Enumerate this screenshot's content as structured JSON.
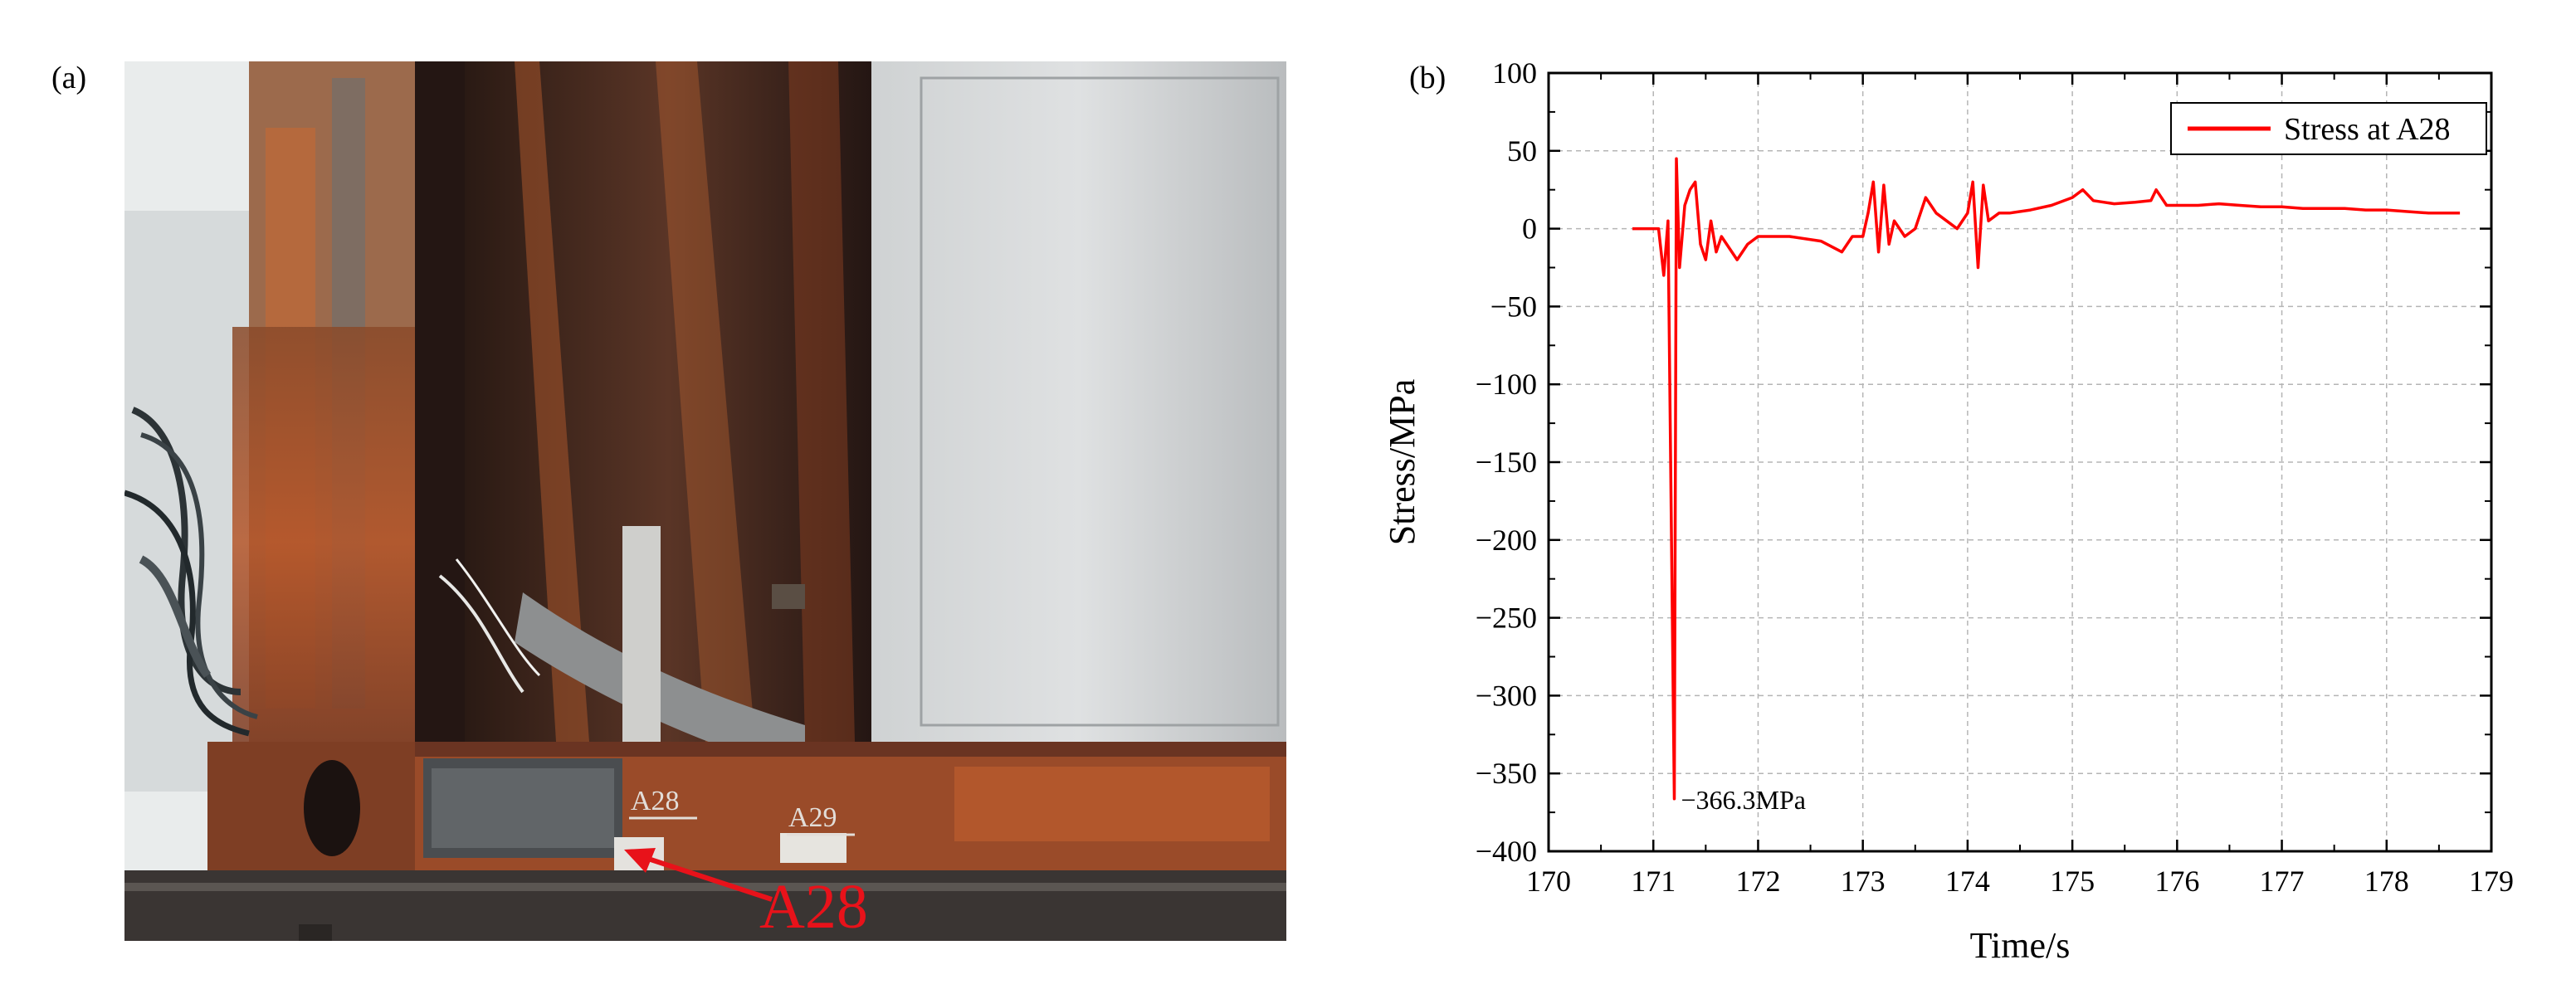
{
  "panels": {
    "a_label": "(a)",
    "b_label": "(b)"
  },
  "photo": {
    "marker_labels": [
      "A28",
      "A29"
    ],
    "callout_label": "A28",
    "callout_color": "#e8121a"
  },
  "chart_data": {
    "type": "line",
    "xlabel": "Time/s",
    "ylabel": "Stress/MPa",
    "xlim": [
      170,
      179
    ],
    "ylim": [
      -400,
      100
    ],
    "xticks": [
      170,
      171,
      172,
      173,
      174,
      175,
      176,
      177,
      178,
      179
    ],
    "yticks": [
      100,
      50,
      0,
      -50,
      -100,
      -150,
      -200,
      -250,
      -300,
      -350,
      -400
    ],
    "grid": true,
    "legend_position": "top-right",
    "line_color": "#ff0000",
    "series": [
      {
        "name": "Stress at A28",
        "x": [
          170.8,
          171.0,
          171.05,
          171.1,
          171.14,
          171.2,
          171.22,
          171.25,
          171.3,
          171.35,
          171.4,
          171.45,
          171.5,
          171.55,
          171.6,
          171.65,
          171.7,
          171.8,
          171.9,
          172.0,
          172.3,
          172.6,
          172.8,
          172.9,
          173.0,
          173.05,
          173.1,
          173.15,
          173.2,
          173.25,
          173.3,
          173.4,
          173.5,
          173.6,
          173.7,
          173.8,
          173.9,
          174.0,
          174.05,
          174.1,
          174.15,
          174.2,
          174.3,
          174.4,
          174.6,
          174.8,
          175.0,
          175.1,
          175.2,
          175.4,
          175.6,
          175.75,
          175.8,
          175.9,
          176.0,
          176.2,
          176.4,
          176.6,
          176.8,
          177.0,
          177.2,
          177.4,
          177.6,
          177.8,
          178.0,
          178.2,
          178.4,
          178.55,
          178.7
        ],
        "y": [
          0,
          0,
          0,
          -30,
          5,
          -366.3,
          45,
          -25,
          15,
          25,
          30,
          -10,
          -20,
          5,
          -15,
          -5,
          -10,
          -20,
          -10,
          -5,
          -5,
          -8,
          -15,
          -5,
          -5,
          10,
          30,
          -15,
          28,
          -10,
          5,
          -5,
          0,
          20,
          10,
          5,
          0,
          10,
          30,
          -25,
          28,
          5,
          10,
          10,
          12,
          15,
          20,
          25,
          18,
          16,
          17,
          18,
          25,
          15,
          15,
          15,
          16,
          15,
          14,
          14,
          13,
          13,
          13,
          12,
          12,
          11,
          10,
          10,
          10
        ]
      }
    ],
    "annotations": [
      {
        "text": "−366.3MPa",
        "x": 171.2,
        "y": -366.3
      }
    ]
  }
}
